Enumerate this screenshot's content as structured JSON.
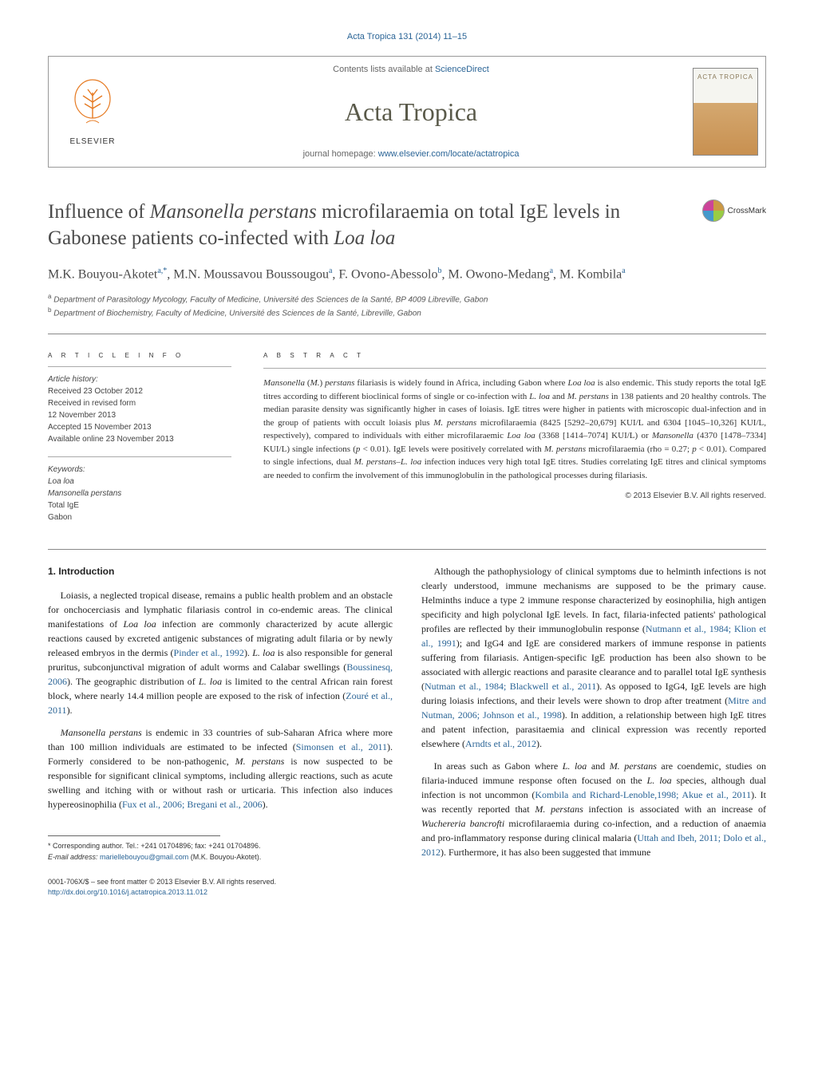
{
  "top_citation": "Acta Tropica 131 (2014) 11–15",
  "header": {
    "contents_prefix": "Contents lists available at ",
    "contents_link": "ScienceDirect",
    "journal_name": "Acta Tropica",
    "homepage_prefix": "journal homepage: ",
    "homepage_link": "www.elsevier.com/locate/actatropica",
    "elsevier_label": "ELSEVIER",
    "cover_title": "ACTA TROPICA"
  },
  "crossmark_label": "CrossMark",
  "title_html": "Influence of <em>Mansonella perstans</em> microfilaraemia on total IgE levels in Gabonese patients co-infected with <em>Loa loa</em>",
  "authors_html": "M.K. Bouyou-Akotet<sup>a,*</sup>, M.N. Moussavou Boussougou<sup>a</sup>, F. Ovono-Abessolo<sup>b</sup>, M. Owono-Medang<sup>a</sup>, M. Kombila<sup>a</sup>",
  "affiliations": [
    "a Department of Parasitology Mycology, Faculty of Medicine, Université des Sciences de la Santé, BP 4009 Libreville, Gabon",
    "b Department of Biochemistry, Faculty of Medicine, Université des Sciences de la Santé, Libreville, Gabon"
  ],
  "article_info": {
    "header": "A R T I C L E   I N F O",
    "history_label": "Article history:",
    "history": [
      "Received 23 October 2012",
      "Received in revised form",
      "12 November 2013",
      "Accepted 15 November 2013",
      "Available online 23 November 2013"
    ],
    "keywords_label": "Keywords:",
    "keywords": [
      "Loa loa",
      "Mansonella perstans",
      "Total IgE",
      "Gabon"
    ]
  },
  "abstract": {
    "header": "A B S T R A C T",
    "text_html": "<em>Mansonella</em> (<em>M.</em>) <em>perstans</em> filariasis is widely found in Africa, including Gabon where <em>Loa loa</em> is also endemic. This study reports the total IgE titres according to different bioclinical forms of single or co-infection with <em>L. loa</em> and <em>M. perstans</em> in 138 patients and 20 healthy controls. The median parasite density was significantly higher in cases of loiasis. IgE titres were higher in patients with microscopic dual-infection and in the group of patients with occult loiasis plus <em>M. perstans</em> microfilaraemia (8425 [5292–20,679] KUI/L and 6304 [1045–10,326] KUI/L, respectively), compared to individuals with either microfilaraemic <em>Loa loa</em> (3368 [1414–7074] KUI/L) or <em>Mansonella</em> (4370 [1478–7334] KUI/L) single infections (<em>p</em> < 0.01). IgE levels were positively correlated with <em>M. perstans</em> microfilaraemia (rho = 0.27; <em>p</em> < 0.01). Compared to single infections, dual <em>M. perstans–L. loa</em> infection induces very high total IgE titres. Studies correlating IgE titres and clinical symptoms are needed to confirm the involvement of this immunoglobulin in the pathological processes during filariasis.",
    "copyright": "© 2013 Elsevier B.V. All rights reserved."
  },
  "body": {
    "section_heading": "1. Introduction",
    "col1": [
      "Loiasis, a neglected tropical disease, remains a public health problem and an obstacle for onchocerciasis and lymphatic filariasis control in co-endemic areas. The clinical manifestations of <em>Loa loa</em> infection are commonly characterized by acute allergic reactions caused by excreted antigenic substances of migrating adult filaria or by newly released embryos in the dermis (<span class='ref-link'>Pinder et al., 1992</span>). <em>L. loa</em> is also responsible for general pruritus, subconjunctival migration of adult worms and Calabar swellings (<span class='ref-link'>Boussinesq, 2006</span>). The geographic distribution of <em>L. loa</em> is limited to the central African rain forest block, where nearly 14.4 million people are exposed to the risk of infection (<span class='ref-link'>Zouré et al., 2011</span>).",
      "<em>Mansonella perstans</em> is endemic in 33 countries of sub-Saharan Africa where more than 100 million individuals are estimated to be infected (<span class='ref-link'>Simonsen et al., 2011</span>). Formerly considered to be non-pathogenic, <em>M. perstans</em> is now suspected to be responsible for significant clinical symptoms, including allergic reactions, such as acute swelling and itching with or without rash or urticaria. This infection also induces hypereosinophilia (<span class='ref-link'>Fux et al., 2006; Bregani et al., 2006</span>)."
    ],
    "col2": [
      "Although the pathophysiology of clinical symptoms due to helminth infections is not clearly understood, immune mechanisms are supposed to be the primary cause. Helminths induce a type 2 immune response characterized by eosinophilia, high antigen specificity and high polyclonal IgE levels. In fact, filaria-infected patients' pathological profiles are reflected by their immunoglobulin response (<span class='ref-link'>Nutmann et al., 1984; Klion et al., 1991</span>); and IgG4 and IgE are considered markers of immune response in patients suffering from filariasis. Antigen-specific IgE production has been also shown to be associated with allergic reactions and parasite clearance and to parallel total IgE synthesis (<span class='ref-link'>Nutman et al., 1984; Blackwell et al., 2011</span>). As opposed to IgG4, IgE levels are high during loiasis infections, and their levels were shown to drop after treatment (<span class='ref-link'>Mitre and Nutman, 2006; Johnson et al., 1998</span>). In addition, a relationship between high IgE titres and patent infection, parasitaemia and clinical expression was recently reported elsewhere (<span class='ref-link'>Arndts et al., 2012</span>).",
      "In areas such as Gabon where <em>L. loa</em> and <em>M. perstans</em> are coendemic, studies on filaria-induced immune response often focused on the <em>L. loa</em> species, although dual infection is not uncommon (<span class='ref-link'>Kombila and Richard-Lenoble,1998; Akue et al., 2011</span>). It was recently reported that <em>M. perstans</em> infection is associated with an increase of <em>Wuchereria bancrofti</em> microfilaraemia during co-infection, and a reduction of anaemia and pro-inflammatory response during clinical malaria (<span class='ref-link'>Uttah and Ibeh, 2011; Dolo et al., 2012</span>). Furthermore, it has also been suggested that immune"
    ]
  },
  "footnote": {
    "corresponding": "* Corresponding author. Tel.: +241 01704896; fax: +241 01704896.",
    "email_label": "E-mail address: ",
    "email": "mariellebouyou@gmail.com",
    "email_name": " (M.K. Bouyou-Akotet)."
  },
  "bottom": {
    "issn_line": "0001-706X/$ – see front matter © 2013 Elsevier B.V. All rights reserved.",
    "doi": "http://dx.doi.org/10.1016/j.actatropica.2013.11.012"
  },
  "colors": {
    "link": "#2a6496",
    "text": "#333333",
    "heading": "#4a4a4a"
  }
}
